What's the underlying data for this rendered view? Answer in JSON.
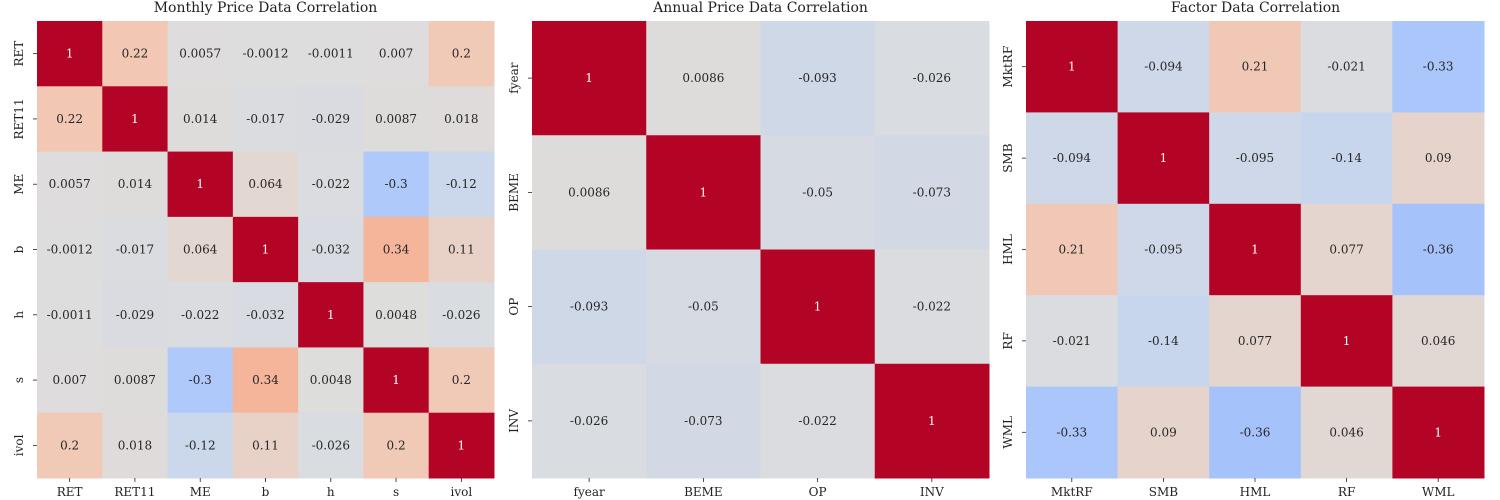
{
  "chart_data": [
    {
      "type": "heatmap",
      "title": "Monthly Price Data Correlation",
      "labels": [
        "RET",
        "RET11",
        "ME",
        "b",
        "h",
        "s",
        "ivol"
      ],
      "matrix": [
        [
          1,
          0.22,
          0.0057,
          -0.0012,
          -0.0011,
          0.007,
          0.2
        ],
        [
          0.22,
          1,
          0.014,
          -0.017,
          -0.029,
          0.0087,
          0.018
        ],
        [
          0.0057,
          0.014,
          1,
          0.064,
          -0.022,
          -0.3,
          -0.12
        ],
        [
          -0.0012,
          -0.017,
          0.064,
          1,
          -0.032,
          0.34,
          0.11
        ],
        [
          -0.0011,
          -0.029,
          -0.022,
          -0.032,
          1,
          0.0048,
          -0.026
        ],
        [
          0.007,
          0.0087,
          -0.3,
          0.34,
          0.0048,
          1,
          0.2
        ],
        [
          0.2,
          0.018,
          -0.12,
          0.11,
          -0.026,
          0.2,
          1
        ]
      ],
      "value_range": [
        -1,
        1
      ],
      "colormap": "coolwarm",
      "colorbar": false
    },
    {
      "type": "heatmap",
      "title": "Annual Price Data Correlation",
      "labels": [
        "fyear",
        "BEME",
        "OP",
        "INV"
      ],
      "matrix": [
        [
          1,
          0.0086,
          -0.093,
          -0.026
        ],
        [
          0.0086,
          1,
          -0.05,
          -0.073
        ],
        [
          -0.093,
          -0.05,
          1,
          -0.022
        ],
        [
          -0.026,
          -0.073,
          -0.022,
          1
        ]
      ],
      "value_range": [
        -1,
        1
      ],
      "colormap": "coolwarm",
      "colorbar": false
    },
    {
      "type": "heatmap",
      "title": "Factor Data Correlation",
      "labels": [
        "MktRF",
        "SMB",
        "HML",
        "RF",
        "WML"
      ],
      "matrix": [
        [
          1,
          -0.094,
          0.21,
          -0.021,
          -0.33
        ],
        [
          -0.094,
          1,
          -0.095,
          -0.14,
          0.09
        ],
        [
          0.21,
          -0.095,
          1,
          0.077,
          -0.36
        ],
        [
          -0.021,
          -0.14,
          0.077,
          1,
          0.046
        ],
        [
          -0.33,
          0.09,
          -0.36,
          0.046,
          1
        ]
      ],
      "value_range": [
        -1,
        1
      ],
      "colormap": "coolwarm",
      "colorbar": false
    }
  ]
}
